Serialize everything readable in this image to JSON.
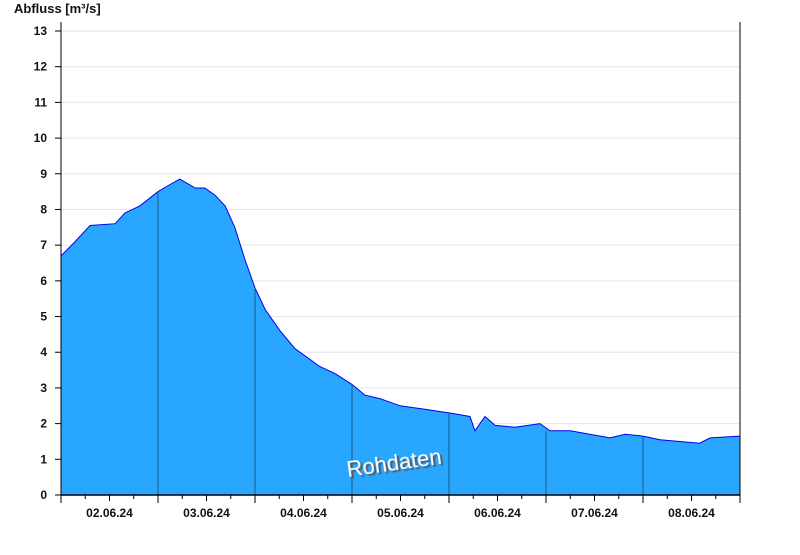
{
  "chart_data": {
    "type": "area",
    "ylabel": "Abfluss [m³/s]",
    "watermark": "Rohdaten",
    "x_unit": "hours since 02.06.24 00:00",
    "xlim": [
      0,
      168
    ],
    "ylim": [
      0,
      13
    ],
    "yticks": [
      0,
      1,
      2,
      3,
      4,
      5,
      6,
      7,
      8,
      9,
      10,
      11,
      12,
      13
    ],
    "xtick_labels": [
      {
        "label": "02.06.24",
        "hour": 12
      },
      {
        "label": "03.06.24",
        "hour": 36
      },
      {
        "label": "04.06.24",
        "hour": 60
      },
      {
        "label": "05.06.24",
        "hour": 84
      },
      {
        "label": "06.06.24",
        "hour": 108
      },
      {
        "label": "07.06.24",
        "hour": 132
      },
      {
        "label": "08.06.24",
        "hour": 156
      }
    ],
    "grid": true,
    "colors": {
      "fill": "#29a6ff",
      "line": "#0000ee",
      "separator": "#1f5a86",
      "grid": "#e6e6e6"
    },
    "series": [
      {
        "name": "Abfluss",
        "x": [
          0,
          3.5,
          7.2,
          13.4,
          15.8,
          19.5,
          24,
          27,
          29.4,
          33.2,
          35.6,
          38.1,
          40.6,
          43,
          45.5,
          48,
          50.5,
          54.2,
          57.9,
          61.6,
          64,
          67.8,
          72,
          75.2,
          78.9,
          83.9,
          90,
          96,
          101.2,
          102.4,
          104.9,
          107.4,
          112.3,
          118.5,
          121,
          126,
          133.4,
          135.8,
          139.6,
          144,
          148.2,
          153.1,
          158,
          160.6,
          168
        ],
        "y": [
          6.7,
          7.1,
          7.55,
          7.6,
          7.9,
          8.1,
          8.5,
          8.7,
          8.85,
          8.6,
          8.6,
          8.4,
          8.1,
          7.5,
          6.6,
          5.8,
          5.2,
          4.6,
          4.1,
          3.8,
          3.6,
          3.4,
          3.1,
          2.8,
          2.7,
          2.5,
          2.4,
          2.3,
          2.2,
          1.8,
          2.2,
          1.95,
          1.9,
          2.0,
          1.8,
          1.8,
          1.65,
          1.6,
          1.7,
          1.65,
          1.55,
          1.5,
          1.45,
          1.6,
          1.65
        ]
      }
    ]
  }
}
